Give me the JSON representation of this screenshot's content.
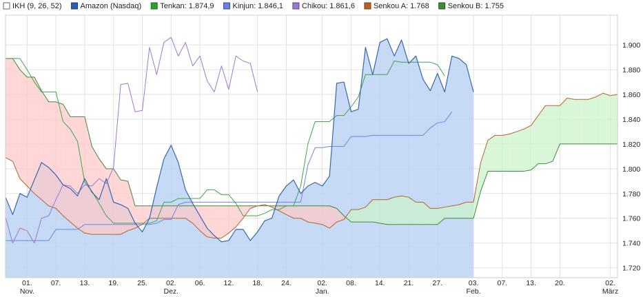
{
  "chart_data": {
    "type": "line",
    "legend_position": "top",
    "grid": true,
    "ylim": [
      1.712,
      1.924
    ],
    "y_ticks": [
      "1.720",
      "1.740",
      "1.760",
      "1.780",
      "1.800",
      "1.820",
      "1.840",
      "1.860",
      "1.880",
      "1.900"
    ],
    "x_ticks": [
      {
        "label": "01.",
        "sub": "Nov.",
        "i": 3
      },
      {
        "label": "07.",
        "sub": "",
        "i": 7
      },
      {
        "label": "13.",
        "sub": "",
        "i": 11
      },
      {
        "label": "19.",
        "sub": "",
        "i": 15
      },
      {
        "label": "25.",
        "sub": "",
        "i": 19
      },
      {
        "label": "02.",
        "sub": "Dez.",
        "i": 23
      },
      {
        "label": "06.",
        "sub": "",
        "i": 27
      },
      {
        "label": "12.",
        "sub": "",
        "i": 31
      },
      {
        "label": "18.",
        "sub": "",
        "i": 35
      },
      {
        "label": "24.",
        "sub": "",
        "i": 39
      },
      {
        "label": "02.",
        "sub": "Jan.",
        "i": 44
      },
      {
        "label": "08.",
        "sub": "",
        "i": 48
      },
      {
        "label": "14.",
        "sub": "",
        "i": 52
      },
      {
        "label": "21.",
        "sub": "",
        "i": 56
      },
      {
        "label": "27.",
        "sub": "",
        "i": 60
      },
      {
        "label": "03.",
        "sub": "Feb.",
        "i": 65
      },
      {
        "label": "07.",
        "sub": "",
        "i": 69
      },
      {
        "label": "13.",
        "sub": "",
        "i": 73
      },
      {
        "label": "20.",
        "sub": "",
        "i": 77
      },
      {
        "label": "02.",
        "sub": "März",
        "i": 84
      }
    ],
    "legend": [
      {
        "label": "IKH (9, 26, 52)",
        "color": "#ffffff",
        "border": "#666666"
      },
      {
        "label": "Amazon (Nasdaq)",
        "color": "#2a5db0",
        "border": "#1a3f80"
      },
      {
        "label": "Tenkan: 1.874,9",
        "color": "#33a02c",
        "border": "#1e6e1a"
      },
      {
        "label": "Kinjun: 1.846,1",
        "color": "#6a7fe0",
        "border": "#3a4fa8"
      },
      {
        "label": "Chikou: 1.861,6",
        "color": "#9a78d6",
        "border": "#5f4296"
      },
      {
        "label": "Senkou A: 1.768",
        "color": "#b5632a",
        "border": "#7a3d14"
      },
      {
        "label": "Senkou B: 1.755",
        "color": "#3f8a3a",
        "border": "#24591f"
      }
    ],
    "colors": {
      "price": "#3566b0",
      "price_fill": "#bcd3f5",
      "tenkan": "#3fa54a",
      "kijun": "#6f86dc",
      "chikou": "#9a78d6",
      "senkou_a": "#b5632a",
      "senkou_b": "#3f8a3a",
      "cloud_bull": "#ccf2c9",
      "cloud_bear": "#ffc8c8"
    },
    "series": [
      {
        "name": "Amazon (Nasdaq)",
        "key": "price",
        "start": 0,
        "values": [
          1.777,
          1.763,
          1.78,
          1.777,
          1.791,
          1.805,
          1.801,
          1.795,
          1.787,
          1.784,
          1.778,
          1.792,
          1.781,
          1.775,
          1.792,
          1.773,
          1.771,
          1.768,
          1.756,
          1.749,
          1.76,
          1.785,
          1.808,
          1.819,
          1.805,
          1.783,
          1.772,
          1.762,
          1.752,
          1.746,
          1.741,
          1.742,
          1.751,
          1.751,
          1.742,
          1.749,
          1.758,
          1.76,
          1.778,
          1.786,
          1.791,
          1.78,
          1.786,
          1.789,
          1.786,
          1.794,
          1.869,
          1.87,
          1.846,
          1.848,
          1.898,
          1.876,
          1.902,
          1.905,
          1.891,
          1.904,
          1.885,
          1.891,
          1.872,
          1.863,
          1.877,
          1.862,
          1.891,
          1.889,
          1.884,
          1.862
        ]
      },
      {
        "name": "Tenkan",
        "key": "tenkan",
        "start": 0,
        "values": [
          1.889,
          1.889,
          1.889,
          1.88,
          1.87,
          1.862,
          1.862,
          1.862,
          1.838,
          1.832,
          1.822,
          1.789,
          1.782,
          1.772,
          1.762,
          1.756,
          1.756,
          1.756,
          1.756,
          1.756,
          1.756,
          1.758,
          1.773,
          1.773,
          1.776,
          1.776,
          1.776,
          1.776,
          1.783,
          1.783,
          1.779,
          1.779,
          1.772,
          1.762,
          1.762,
          1.762,
          1.764,
          1.767,
          1.767,
          1.77,
          1.77,
          1.786,
          1.82,
          1.838,
          1.838,
          1.838,
          1.843,
          1.843,
          1.85,
          1.858,
          1.876,
          1.876,
          1.876,
          1.876,
          1.887,
          1.886,
          1.886,
          1.886,
          1.886,
          1.886,
          1.884,
          1.875
        ]
      },
      {
        "name": "Kinjun",
        "key": "kijun",
        "start": 0,
        "values": [
          1.742,
          1.742,
          1.742,
          1.742,
          1.742,
          1.742,
          1.742,
          1.751,
          1.751,
          1.751,
          1.751,
          1.755,
          1.755,
          1.755,
          1.755,
          1.755,
          1.755,
          1.755,
          1.755,
          1.755,
          1.755,
          1.756,
          1.759,
          1.759,
          1.771,
          1.773,
          1.773,
          1.773,
          1.773,
          1.773,
          1.773,
          1.773,
          1.773,
          1.773,
          1.773,
          1.773,
          1.773,
          1.773,
          1.773,
          1.773,
          1.773,
          1.773,
          1.803,
          1.817,
          1.817,
          1.818,
          1.818,
          1.818,
          1.826,
          1.826,
          1.826,
          1.827,
          1.827,
          1.827,
          1.827,
          1.827,
          1.827,
          1.827,
          1.827,
          1.833,
          1.837,
          1.838,
          1.846
        ]
      },
      {
        "name": "Chikou",
        "key": "chikou",
        "start": 0,
        "values": [
          1.761,
          1.74,
          1.752,
          1.75,
          1.74,
          1.76,
          1.762,
          1.775,
          1.787,
          1.786,
          1.78,
          1.787,
          1.786,
          1.792,
          1.788,
          1.801,
          1.868,
          1.869,
          1.846,
          1.847,
          1.898,
          1.876,
          1.902,
          1.906,
          1.891,
          1.902,
          1.883,
          1.891,
          1.871,
          1.862,
          1.883,
          1.864,
          1.891,
          1.887,
          1.885,
          1.862
        ]
      },
      {
        "name": "Senkou A",
        "key": "senkou_a",
        "start": 0,
        "values": [
          1.809,
          1.806,
          1.792,
          1.786,
          1.78,
          1.775,
          1.77,
          1.768,
          1.762,
          1.757,
          1.752,
          1.748,
          1.747,
          1.747,
          1.747,
          1.747,
          1.747,
          1.75,
          1.752,
          1.755,
          1.76,
          1.76,
          1.76,
          1.76,
          1.76,
          1.76,
          1.756,
          1.75,
          1.745,
          1.744,
          1.744,
          1.748,
          1.753,
          1.76,
          1.768,
          1.77,
          1.771,
          1.769,
          1.766,
          1.763,
          1.76,
          1.76,
          1.757,
          1.756,
          1.755,
          1.752,
          1.757,
          1.759,
          1.767,
          1.767,
          1.769,
          1.775,
          1.775,
          1.775,
          1.777,
          1.778,
          1.777,
          1.773,
          1.773,
          1.768,
          1.768,
          1.769,
          1.77,
          1.771,
          1.773,
          1.773,
          1.805,
          1.823,
          1.827,
          1.827,
          1.828,
          1.83,
          1.832,
          1.835,
          1.843,
          1.851,
          1.851,
          1.851,
          1.857,
          1.856,
          1.856,
          1.856,
          1.858,
          1.861,
          1.859,
          1.86
        ]
      },
      {
        "name": "Senkou B",
        "key": "senkou_b",
        "start": 0,
        "values": [
          1.889,
          1.889,
          1.88,
          1.874,
          1.874,
          1.863,
          1.854,
          1.854,
          1.852,
          1.842,
          1.842,
          1.842,
          1.818,
          1.808,
          1.8,
          1.8,
          1.791,
          1.79,
          1.77,
          1.77,
          1.77,
          1.77,
          1.77,
          1.77,
          1.77,
          1.77,
          1.77,
          1.77,
          1.77,
          1.77,
          1.77,
          1.77,
          1.77,
          1.77,
          1.77,
          1.77,
          1.77,
          1.77,
          1.77,
          1.77,
          1.77,
          1.77,
          1.77,
          1.77,
          1.77,
          1.77,
          1.768,
          1.762,
          1.757,
          1.757,
          1.757,
          1.757,
          1.756,
          1.755,
          1.755,
          1.755,
          1.755,
          1.755,
          1.755,
          1.755,
          1.755,
          1.76,
          1.76,
          1.76,
          1.76,
          1.76,
          1.782,
          1.798,
          1.798,
          1.798,
          1.798,
          1.798,
          1.798,
          1.799,
          1.804,
          1.804,
          1.806,
          1.82,
          1.82,
          1.82,
          1.82,
          1.82,
          1.82,
          1.82,
          1.82,
          1.82
        ]
      }
    ]
  }
}
